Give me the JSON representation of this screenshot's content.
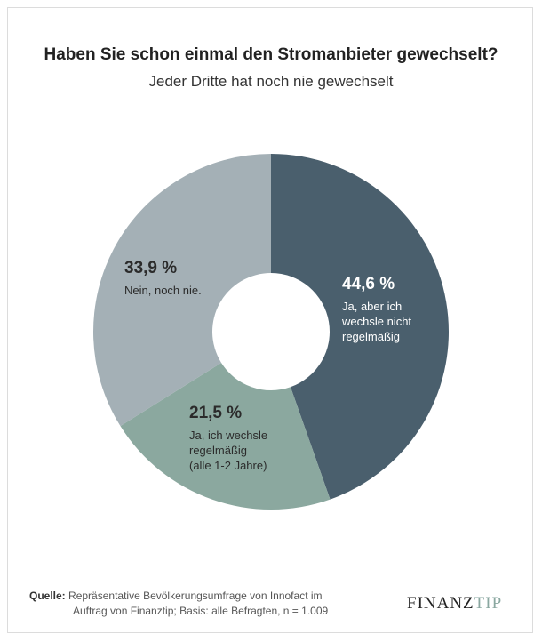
{
  "title": "Haben Sie schon einmal den Stromanbieter gewechselt?",
  "subtitle": "Jeder Dritte hat noch nie gewechselt",
  "colors": {
    "dark": "#4a5f6d",
    "green": "#8ba89f",
    "grey": "#a4b0b6"
  },
  "chart_data": {
    "type": "pie",
    "variant": "donut",
    "categories": [
      "Ja, aber ich wechsle nicht regelmäßig",
      "Ja, ich wechsle regelmäßig (alle 1-2 Jahre)",
      "Nein, noch nie."
    ],
    "values": [
      44.6,
      21.5,
      33.9
    ],
    "slices": [
      {
        "value_label": "44,6 %",
        "label_lines": [
          "Ja, aber ich",
          "wechsle nicht",
          "regelmäßig"
        ],
        "color": "#4a5f6d",
        "text_color": "#ffffff"
      },
      {
        "value_label": "21,5 %",
        "label_lines": [
          "Ja, ich wechsle",
          "regelmäßig",
          "(alle 1-2 Jahre)"
        ],
        "color": "#8ba89f",
        "text_color": "#2b2b2b"
      },
      {
        "value_label": "33,9 %",
        "label_lines": [
          "Nein, noch nie."
        ],
        "color": "#a4b0b6",
        "text_color": "#2b2b2b"
      }
    ]
  },
  "footer": {
    "source_label": "Quelle:",
    "source_line1": "Repräsentative Bevölkerungsumfrage von Innofact im",
    "source_line2": "Auftrag von Finanztip; Basis: alle Befragten, n = 1.009"
  },
  "logo": {
    "part1": "FINANZ",
    "part2": "TIP"
  }
}
